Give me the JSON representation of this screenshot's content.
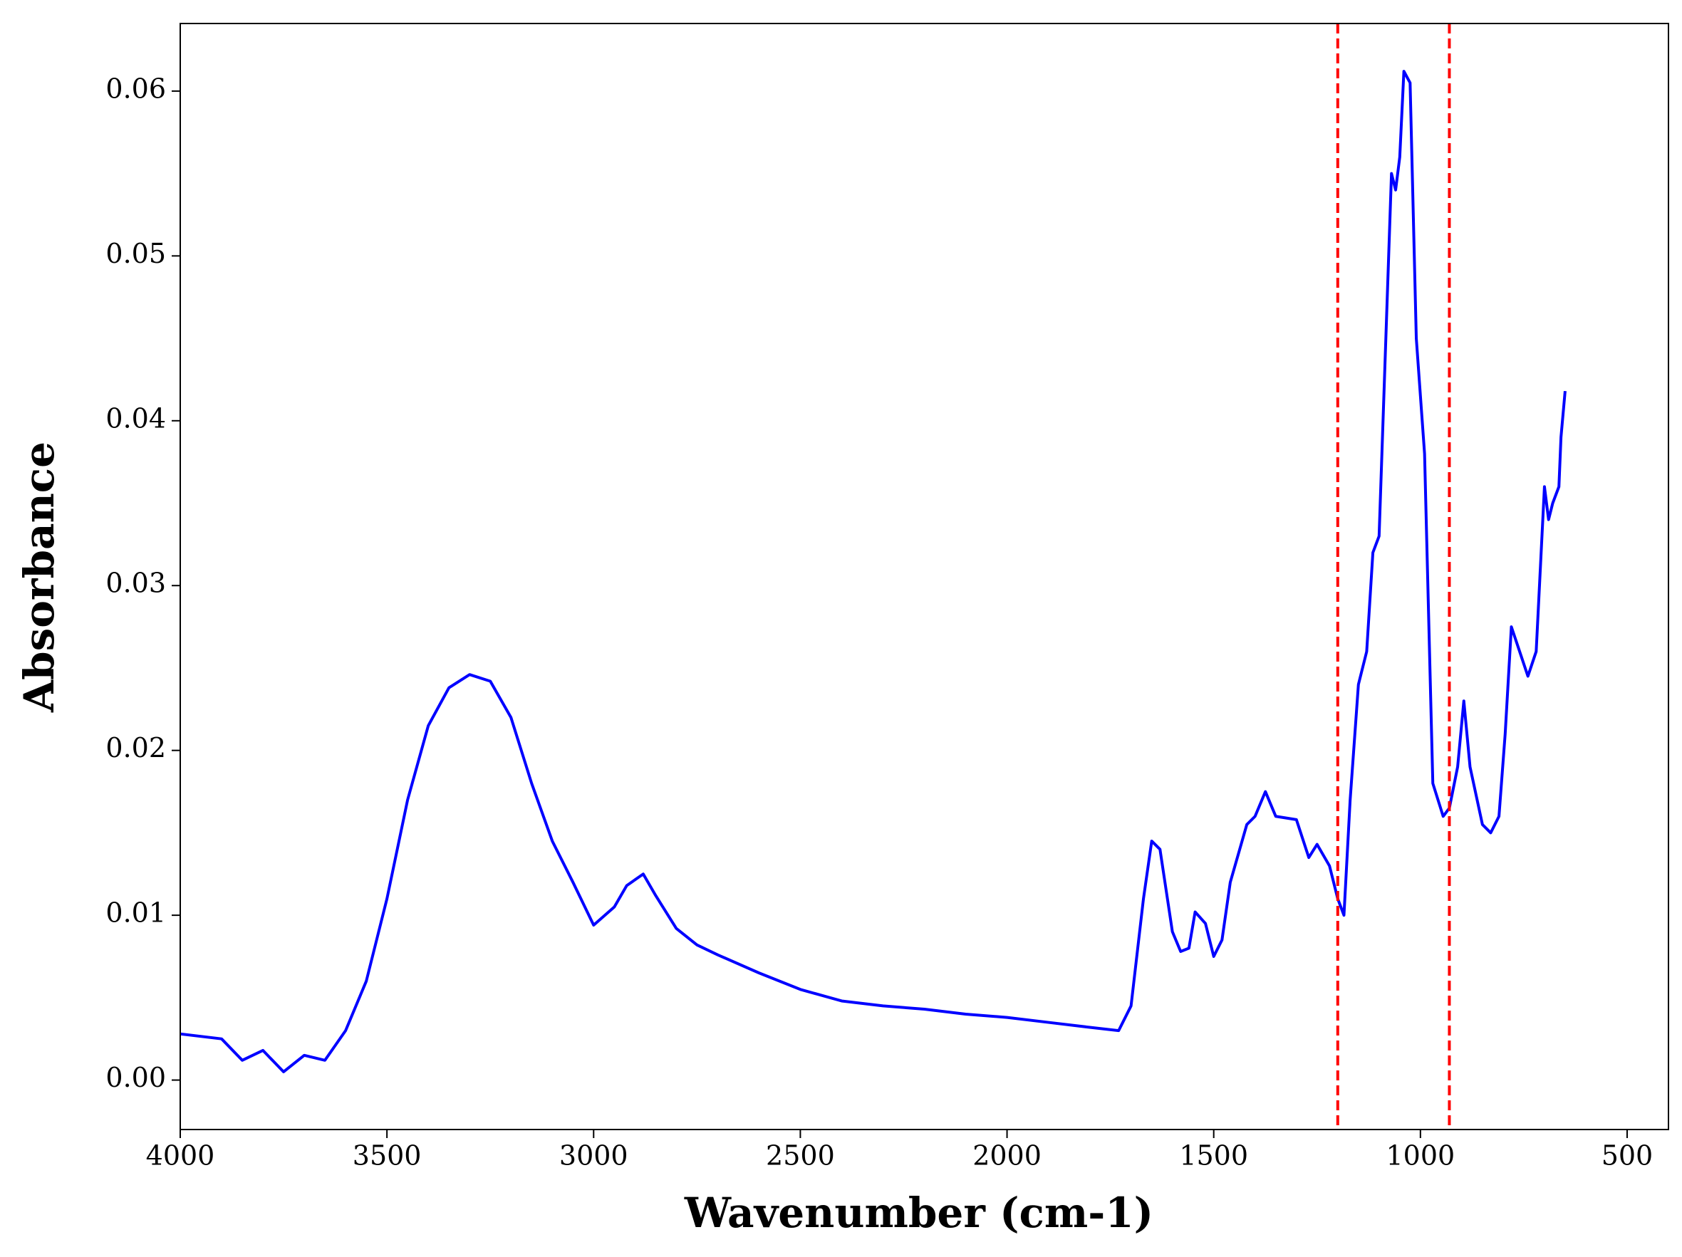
{
  "chart_data": {
    "type": "line",
    "xlabel": "Wavenumber (cm-1)",
    "ylabel": "Absorbance",
    "xlim": [
      4000,
      400
    ],
    "ylim": [
      -0.003,
      0.0641
    ],
    "xticks": [
      4000,
      3500,
      3000,
      2500,
      2000,
      1500,
      1000,
      500
    ],
    "yticks": [
      {
        "value": 0,
        "label": "0.00"
      },
      0.01,
      0.02,
      0.03,
      0.04,
      0.05,
      0.06
    ],
    "grid": false,
    "vlines": {
      "x": [
        1200,
        930
      ],
      "color": "#ff0000",
      "dashed": true
    },
    "series": [
      {
        "color": "#0000ff",
        "x": [
          4000,
          3900,
          3850,
          3800,
          3750,
          3700,
          3650,
          3600,
          3550,
          3500,
          3450,
          3400,
          3350,
          3300,
          3250,
          3200,
          3150,
          3100,
          3050,
          3000,
          2950,
          2920,
          2880,
          2850,
          2800,
          2750,
          2700,
          2600,
          2500,
          2400,
          2300,
          2200,
          2100,
          2000,
          1900,
          1800,
          1730,
          1700,
          1670,
          1650,
          1630,
          1600,
          1580,
          1560,
          1545,
          1520,
          1500,
          1480,
          1460,
          1420,
          1400,
          1375,
          1350,
          1300,
          1270,
          1250,
          1220,
          1200,
          1185,
          1170,
          1150,
          1130,
          1115,
          1100,
          1085,
          1070,
          1060,
          1050,
          1040,
          1025,
          1010,
          990,
          970,
          945,
          930,
          910,
          895,
          880,
          850,
          830,
          810,
          795,
          780,
          760,
          740,
          720,
          700,
          690,
          680,
          665,
          660,
          650
        ],
        "values": [
          0.0028,
          0.0025,
          0.0012,
          0.0018,
          0.0005,
          0.0015,
          0.0012,
          0.003,
          0.006,
          0.011,
          0.017,
          0.0215,
          0.0238,
          0.0246,
          0.0242,
          0.022,
          0.018,
          0.0145,
          0.012,
          0.0094,
          0.0105,
          0.0118,
          0.0125,
          0.0112,
          0.0092,
          0.0082,
          0.0076,
          0.0065,
          0.0055,
          0.0048,
          0.0045,
          0.0043,
          0.004,
          0.0038,
          0.0035,
          0.0032,
          0.003,
          0.0045,
          0.011,
          0.0145,
          0.014,
          0.009,
          0.0078,
          0.008,
          0.0102,
          0.0095,
          0.0075,
          0.0085,
          0.012,
          0.0155,
          0.016,
          0.0175,
          0.016,
          0.0158,
          0.0135,
          0.0143,
          0.013,
          0.011,
          0.01,
          0.017,
          0.024,
          0.026,
          0.032,
          0.033,
          0.044,
          0.055,
          0.054,
          0.056,
          0.0612,
          0.0605,
          0.045,
          0.038,
          0.018,
          0.016,
          0.0165,
          0.019,
          0.023,
          0.019,
          0.0155,
          0.015,
          0.016,
          0.021,
          0.0275,
          0.026,
          0.0245,
          0.026,
          0.036,
          0.034,
          0.035,
          0.036,
          0.039,
          0.0418
        ]
      }
    ]
  }
}
